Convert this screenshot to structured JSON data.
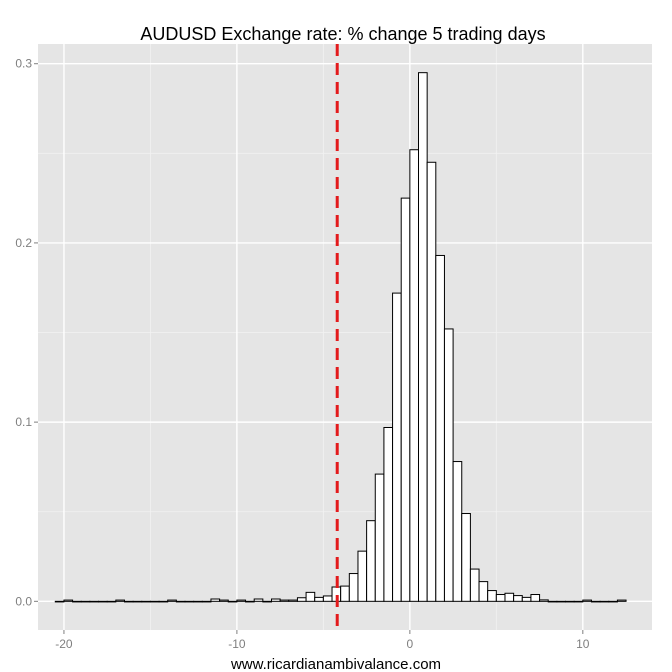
{
  "chart_data": {
    "type": "bar",
    "title": "AUDUSD Exchange rate: % change 5 trading days",
    "xlabel": "www.ricardianambivalance.com",
    "ylabel": "",
    "xlim": [
      -21.5,
      14.0
    ],
    "ylim": [
      -0.016,
      0.311
    ],
    "x_ticks": [
      -20,
      -10,
      0,
      10
    ],
    "x_tick_labels": [
      "-20",
      "-10",
      "0",
      "10"
    ],
    "y_ticks": [
      0.0,
      0.1,
      0.2,
      0.3
    ],
    "y_tick_labels": [
      "0.0",
      "0.1",
      "0.2",
      "0.3"
    ],
    "bin_width": 0.5,
    "bins_left": [
      -20.5,
      -20.0,
      -19.5,
      -19.0,
      -18.5,
      -18.0,
      -17.5,
      -17.0,
      -16.5,
      -16.0,
      -15.5,
      -15.0,
      -14.5,
      -14.0,
      -13.5,
      -13.0,
      -12.5,
      -12.0,
      -11.5,
      -11.0,
      -10.5,
      -10.0,
      -9.5,
      -9.0,
      -8.5,
      -8.0,
      -7.5,
      -7.0,
      -6.5,
      -6.0,
      -5.5,
      -5.0,
      -4.5,
      -4.0,
      -3.5,
      -3.0,
      -2.5,
      -2.0,
      -1.5,
      -1.0,
      -0.5,
      0.0,
      0.5,
      1.0,
      1.5,
      2.0,
      2.5,
      3.0,
      3.5,
      4.0,
      4.5,
      5.0,
      5.5,
      6.0,
      6.5,
      7.0,
      7.5,
      8.0,
      8.5,
      9.0,
      9.5,
      10.0,
      10.5,
      11.0,
      11.5,
      12.0
    ],
    "values": [
      0.0,
      0.0007,
      0.0,
      0.0,
      0.0,
      0.0,
      0.0,
      0.0007,
      0.0,
      0.0,
      0.0,
      0.0,
      0.0,
      0.0007,
      0.0,
      0.0,
      0.0,
      0.0,
      0.0013,
      0.0007,
      0.0,
      0.0007,
      0.0,
      0.0013,
      0.0,
      0.0013,
      0.0007,
      0.0007,
      0.002,
      0.005,
      0.0022,
      0.003,
      0.008,
      0.0085,
      0.0155,
      0.028,
      0.045,
      0.071,
      0.097,
      0.172,
      0.225,
      0.252,
      0.295,
      0.245,
      0.193,
      0.152,
      0.078,
      0.049,
      0.018,
      0.011,
      0.006,
      0.0038,
      0.0045,
      0.0032,
      0.0022,
      0.0038,
      0.0008,
      0.0,
      0.0,
      0.0,
      0.0,
      0.0007,
      0.0,
      0.0,
      0.0,
      0.0007
    ],
    "vline": {
      "x": -4.2,
      "color": "#e31a1c",
      "style": "dashed"
    },
    "panel_background": "#e5e5e5",
    "grid": true,
    "bar_fill": "#ffffff",
    "bar_stroke": "#000000"
  }
}
